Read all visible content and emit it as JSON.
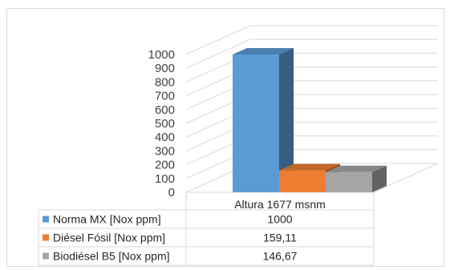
{
  "chart_data": {
    "type": "bar",
    "categories": [
      "Altura 1677 msnm"
    ],
    "series": [
      {
        "name": "Norma MX [Nox ppm]",
        "values": [
          1000
        ],
        "label": "1000",
        "color": "#5b9bd5"
      },
      {
        "name": "Diésel Fósil [Nox ppm]",
        "values": [
          159.11
        ],
        "label": "159,11",
        "color": "#ed7d31"
      },
      {
        "name": "Biodiésel B5 [Nox ppm]",
        "values": [
          146.67
        ],
        "label": "146,67",
        "color": "#a5a5a5"
      }
    ],
    "title": "",
    "xlabel": "",
    "ylabel": "",
    "ylim": [
      0,
      1000
    ],
    "yticks": [
      0,
      100,
      200,
      300,
      400,
      500,
      600,
      700,
      800,
      900,
      1000
    ],
    "grid": true,
    "legend": "data-table-left",
    "three_d": true
  }
}
